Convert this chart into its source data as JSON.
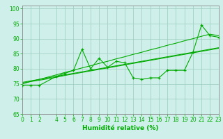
{
  "x": [
    0,
    1,
    2,
    4,
    5,
    6,
    7,
    8,
    9,
    10,
    11,
    12,
    13,
    14,
    15,
    16,
    17,
    18,
    19,
    20,
    21,
    22,
    23
  ],
  "y_main": [
    74.5,
    74.5,
    74.5,
    77.5,
    78.5,
    79.5,
    86.5,
    80.0,
    83.5,
    80.5,
    82.5,
    82.0,
    77.0,
    76.5,
    77.0,
    77.0,
    79.5,
    79.5,
    79.5,
    85.5,
    94.5,
    91.0,
    90.5
  ],
  "y_line1": [
    75.0,
    75.8,
    76.5,
    78.0,
    78.8,
    79.5,
    80.3,
    81.0,
    81.8,
    82.5,
    83.3,
    84.0,
    84.8,
    85.5,
    86.3,
    87.0,
    87.8,
    88.5,
    89.3,
    90.0,
    90.8,
    91.5,
    91.0
  ],
  "y_line2": [
    75.5,
    76.0,
    76.5,
    77.5,
    78.0,
    78.5,
    79.0,
    79.5,
    80.0,
    80.5,
    81.0,
    81.5,
    82.0,
    82.5,
    83.0,
    83.5,
    84.0,
    84.5,
    85.0,
    85.5,
    86.0,
    86.5,
    87.0
  ],
  "y_line3": [
    75.2,
    75.8,
    76.2,
    77.2,
    77.8,
    78.3,
    78.8,
    79.3,
    79.8,
    80.3,
    80.8,
    81.3,
    81.8,
    82.3,
    82.8,
    83.3,
    83.8,
    84.3,
    84.8,
    85.3,
    85.8,
    86.3,
    86.8
  ],
  "bg_color": "#cff0ea",
  "line_color": "#00aa00",
  "grid_color": "#99ccbb",
  "xlabel": "Humidité relative (%)",
  "xlim": [
    0,
    23
  ],
  "ylim": [
    65,
    101
  ],
  "yticks": [
    65,
    70,
    75,
    80,
    85,
    90,
    95,
    100
  ],
  "xticks": [
    0,
    1,
    2,
    4,
    5,
    6,
    7,
    8,
    9,
    10,
    11,
    12,
    13,
    14,
    15,
    16,
    17,
    18,
    19,
    20,
    21,
    22,
    23
  ],
  "tick_fontsize": 5.5,
  "xlabel_fontsize": 6.5
}
